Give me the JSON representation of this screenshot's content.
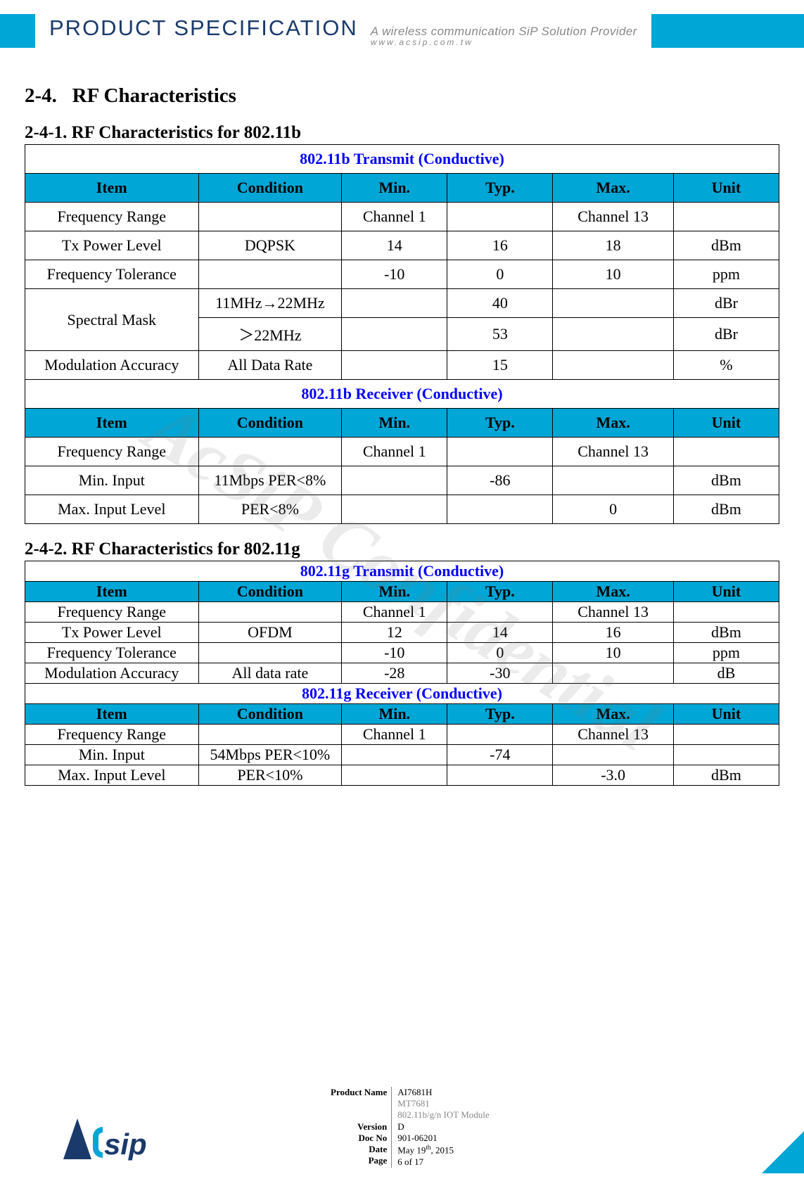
{
  "header": {
    "title": "PRODUCT SPECIFICATION",
    "subtitle": "A wireless communication SiP Solution Provider",
    "url": "www.acsip.com.tw",
    "bar_color": "#00a6d6",
    "title_color": "#1a3a6b"
  },
  "watermark": "AcSiP Confidential",
  "section": {
    "number": "2-4.",
    "title": "RF Characteristics"
  },
  "columns": [
    "Item",
    "Condition",
    "Min.",
    "Typ.",
    "Max.",
    "Unit"
  ],
  "table_header_bg": "#00a6d6",
  "title_row_color": "#0000ff",
  "tables": [
    {
      "subheading": "2-4-1. RF Characteristics for 802.11b",
      "row_padding": "roomy",
      "sections": [
        {
          "title": "802.11b Transmit (Conductive)",
          "rows": [
            {
              "item": "Frequency Range",
              "cond": "",
              "min": "Channel 1",
              "typ": "",
              "max": "Channel 13",
              "unit": ""
            },
            {
              "item": "Tx Power Level",
              "cond": "DQPSK",
              "min": "14",
              "typ": "16",
              "max": "18",
              "unit": "dBm"
            },
            {
              "item": "Frequency Tolerance",
              "cond": "",
              "min": "-10",
              "typ": "0",
              "max": "10",
              "unit": "ppm"
            },
            {
              "item": "Spectral Mask",
              "rowspan": 2,
              "cond": "11MHz→22MHz",
              "min": "",
              "typ": "40",
              "max": "",
              "unit": "dBr"
            },
            {
              "skip_item": true,
              "cond": "＞22MHz",
              "min": "",
              "typ": "53",
              "max": "",
              "unit": "dBr"
            },
            {
              "item": "Modulation Accuracy",
              "cond": "All Data Rate",
              "min": "",
              "typ": "15",
              "max": "",
              "unit": "%"
            }
          ]
        },
        {
          "title": "802.11b Receiver (Conductive)",
          "rows": [
            {
              "item": "Frequency Range",
              "cond": "",
              "min": "Channel 1",
              "typ": "",
              "max": "Channel 13",
              "unit": ""
            },
            {
              "item": "Min. Input",
              "cond": "11Mbps PER<8%",
              "min": "",
              "typ": "-86",
              "max": "",
              "unit": "dBm"
            },
            {
              "item": "Max. Input Level",
              "cond": "PER<8%",
              "min": "",
              "typ": "",
              "max": "0",
              "unit": "dBm"
            }
          ]
        }
      ]
    },
    {
      "subheading": "2-4-2. RF Characteristics for 802.11g",
      "row_padding": "tight",
      "sections": [
        {
          "title": "802.11g Transmit (Conductive)",
          "rows": [
            {
              "item": "Frequency Range",
              "cond": "",
              "min": "Channel 1",
              "typ": "",
              "max": "Channel 13",
              "unit": ""
            },
            {
              "item": "Tx Power Level",
              "cond": "OFDM",
              "min": "12",
              "typ": "14",
              "max": "16",
              "unit": "dBm"
            },
            {
              "item": "Frequency Tolerance",
              "cond": "",
              "min": "-10",
              "typ": "0",
              "max": "10",
              "unit": "ppm"
            },
            {
              "item": "Modulation Accuracy",
              "cond": "All data rate",
              "min": "-28",
              "typ": "-30",
              "max": "",
              "unit": "dB"
            }
          ]
        },
        {
          "title": "802.11g Receiver (Conductive)",
          "rows": [
            {
              "item": "Frequency Range",
              "cond": "",
              "min": "Channel 1",
              "typ": "",
              "max": "Channel 13",
              "unit": ""
            },
            {
              "item": "Min. Input",
              "cond": "54Mbps PER<10%",
              "min": "",
              "typ": "-74",
              "max": "",
              "unit": ""
            },
            {
              "item": "Max. Input Level",
              "cond": "PER<10%",
              "min": "",
              "typ": "",
              "max": "-3.0",
              "unit": "dBm"
            }
          ]
        }
      ]
    }
  ],
  "footer": {
    "logo_text": "sip",
    "meta": [
      {
        "label": "Product Name",
        "value": "AI7681H",
        "class": ""
      },
      {
        "label": "",
        "value": "MT7681",
        "class": "grey"
      },
      {
        "label": "",
        "value": "802.11b/g/n IOT Module",
        "class": "grey"
      },
      {
        "label": "Version",
        "value": "D",
        "class": ""
      },
      {
        "label": "Doc No",
        "value": "901-06201",
        "class": ""
      },
      {
        "label": "Date",
        "value": "May 19th, 2015",
        "class": "",
        "html": "May 19<sup>th</sup>, 2015"
      },
      {
        "label": "Page",
        "value": "6 of 17",
        "class": ""
      }
    ]
  }
}
